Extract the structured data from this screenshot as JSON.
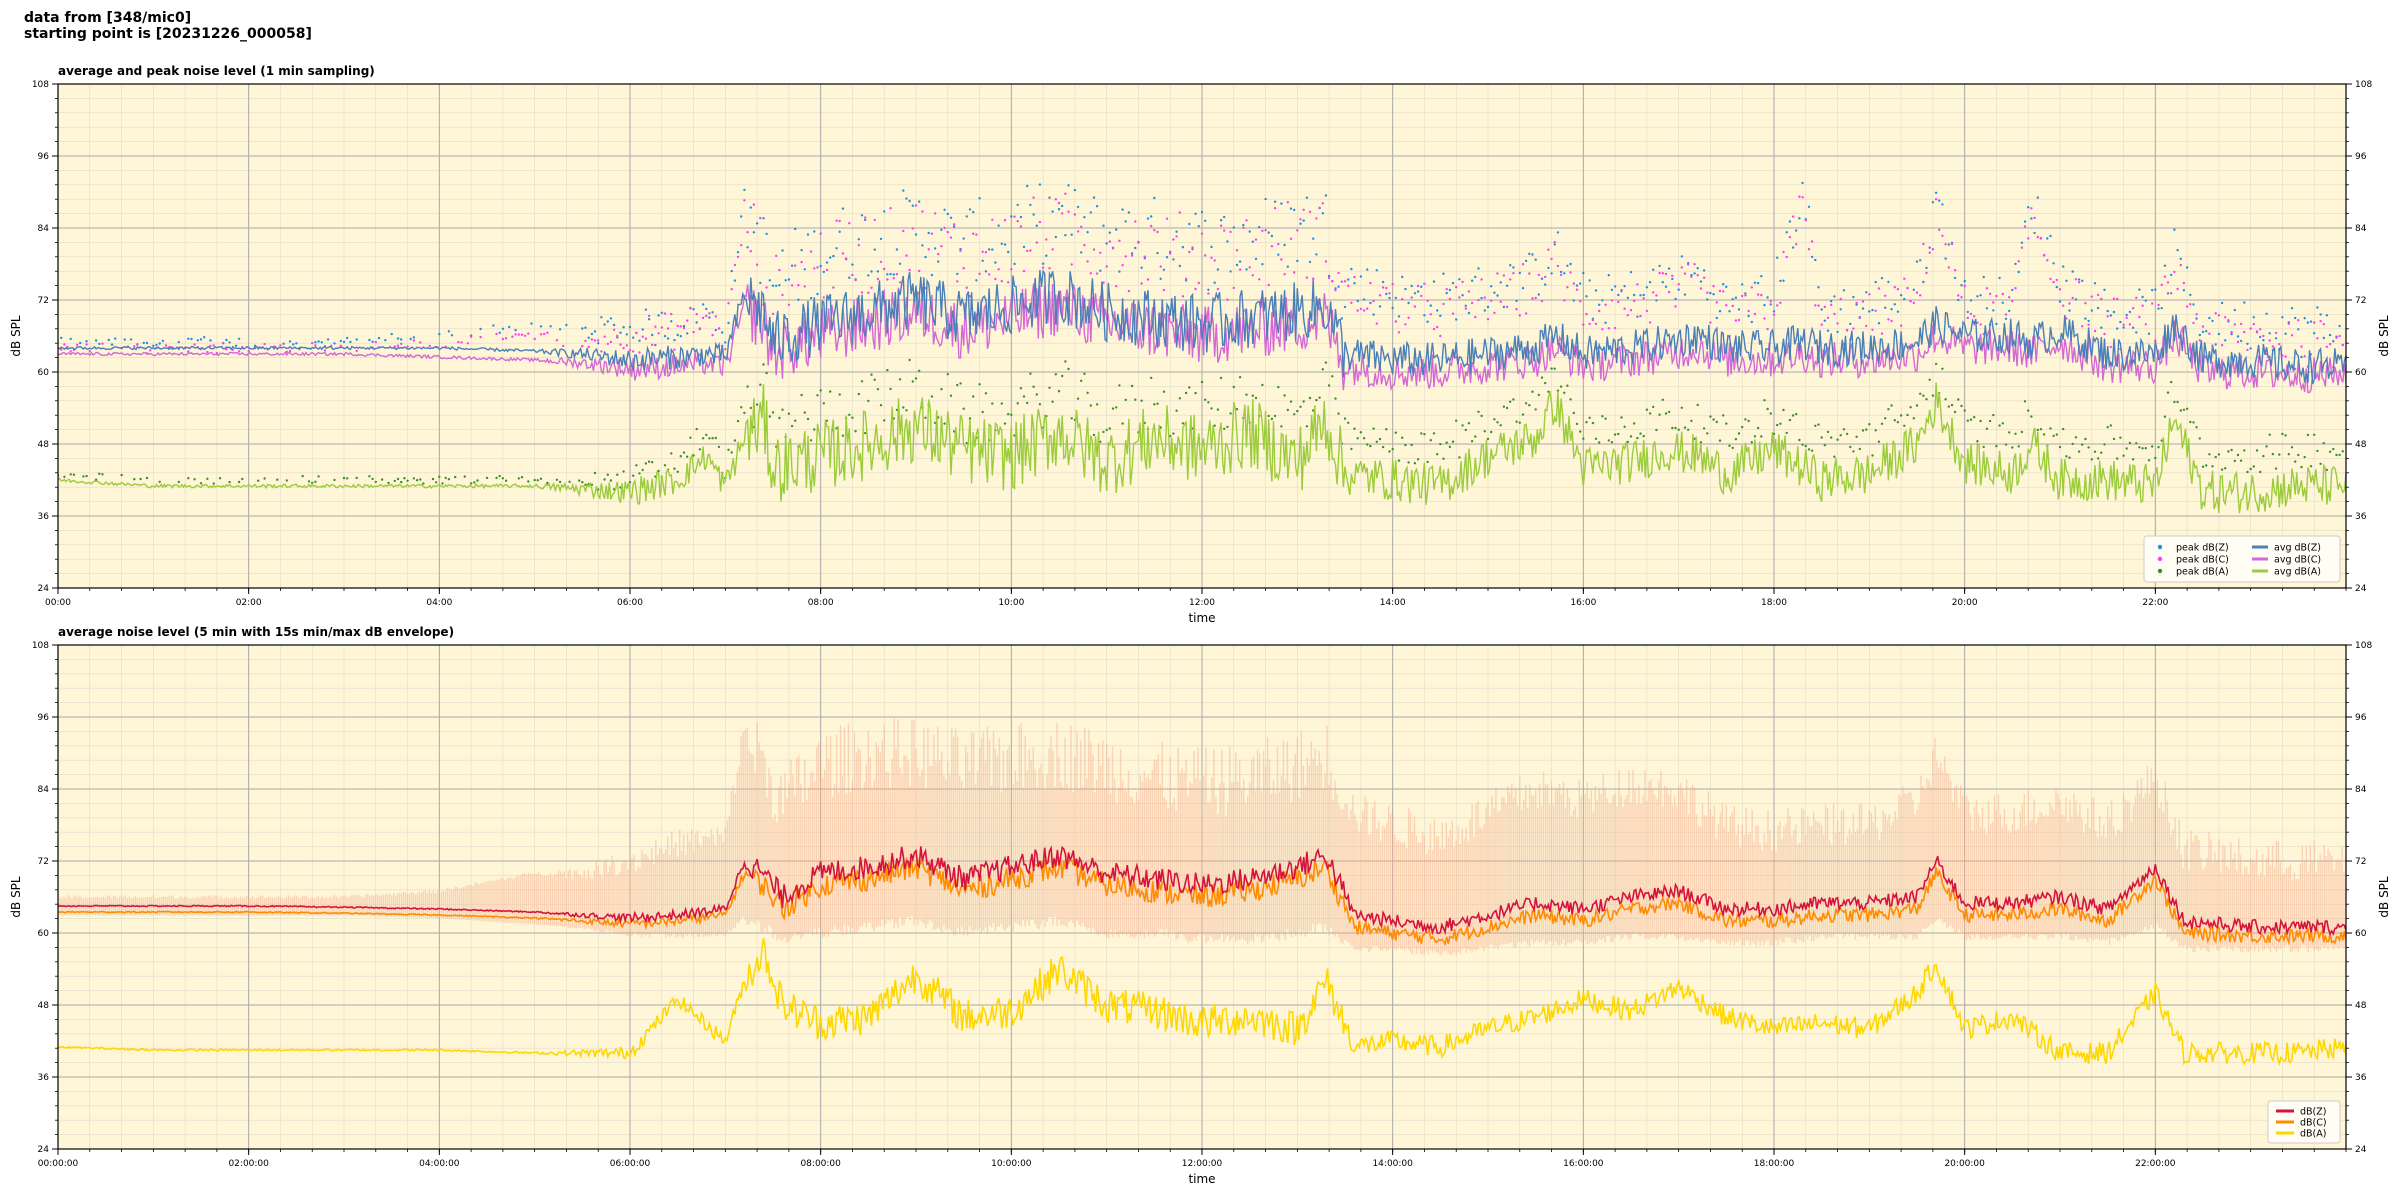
{
  "header": {
    "line1": "data from [348/mic0]",
    "line2": "starting point is [20231226_000058]"
  },
  "colors": {
    "background": "#fff6d8",
    "grid_major": "#a8a8a8",
    "grid_minor": "#e0dbc8",
    "peak_z": "#1f8fe0",
    "peak_c": "#ff3df0",
    "peak_a": "#3a8f2a",
    "avg_z": "#4a7fb8",
    "avg_c": "#d468d4",
    "avg_a": "#9ccc3c",
    "dbz": "#d4143c",
    "dbc": "#ff8c00",
    "dba": "#ffd700",
    "envelope": "#f4a88a"
  },
  "chart_data": [
    {
      "type": "line",
      "title": "average and peak noise level (1 min sampling)",
      "xlabel": "time",
      "ylabel": "dB SPL",
      "xlim": [
        0,
        24
      ],
      "ylim": [
        24,
        108
      ],
      "yticks": [
        "24",
        "36",
        "48",
        "60",
        "72",
        "84",
        "96",
        "108"
      ],
      "xticks": [
        "00:00",
        "02:00",
        "04:00",
        "06:00",
        "08:00",
        "10:00",
        "12:00",
        "14:00",
        "16:00",
        "18:00",
        "20:00",
        "22:00"
      ],
      "grid": true,
      "legend_position": "bottom-right",
      "legend": [
        "peak dB(Z)",
        "peak dB(C)",
        "peak dB(A)",
        "avg dB(Z)",
        "avg dB(C)",
        "avg dB(A)"
      ],
      "x_hours": [
        0,
        1,
        2,
        3,
        4,
        5,
        5.5,
        6,
        6.5,
        6.8,
        7,
        7.2,
        7.4,
        7.5,
        8,
        8.5,
        9,
        9.5,
        10,
        10.5,
        11,
        11.5,
        12,
        12.5,
        13,
        13.3,
        13.5,
        14,
        14.5,
        15,
        15.5,
        15.7,
        16,
        16.5,
        16.9,
        17.2,
        17.5,
        18,
        18.3,
        18.5,
        19,
        19.5,
        19.7,
        20,
        20.5,
        20.7,
        21,
        21.5,
        22,
        22.2,
        22.5,
        23,
        23.5,
        24
      ],
      "series": [
        {
          "name": "avg dB(Z)",
          "values": [
            64,
            64,
            64,
            64,
            64,
            63.5,
            63,
            62,
            62.5,
            63,
            62.5,
            73,
            70,
            65,
            68,
            70,
            72,
            69,
            71,
            73,
            70,
            69,
            68,
            69,
            70,
            71,
            63,
            62,
            62,
            63,
            64,
            66,
            63,
            64,
            65,
            66,
            64,
            64,
            65,
            64,
            64,
            65,
            68,
            66,
            66,
            65,
            67,
            63,
            63,
            68,
            62,
            62,
            61,
            61
          ]
        },
        {
          "name": "avg dB(C)",
          "values": [
            63,
            63,
            63,
            63,
            62.5,
            62,
            61.5,
            60.5,
            61,
            61.5,
            61,
            71,
            68,
            63,
            66,
            68,
            70,
            67,
            69,
            71,
            68,
            67,
            66,
            67,
            68,
            69,
            61,
            60,
            60,
            61,
            62,
            64,
            61,
            62,
            63,
            64,
            62,
            62,
            63,
            62,
            62,
            63,
            66,
            64,
            64,
            63,
            65,
            61,
            61,
            66,
            60,
            60,
            59.5,
            59.5
          ]
        },
        {
          "name": "avg dB(A)",
          "values": [
            42,
            41,
            41,
            41,
            41,
            41,
            40.5,
            40,
            42,
            46,
            41,
            49,
            52,
            44,
            46,
            48,
            51,
            47,
            46,
            50,
            45,
            49,
            47,
            50,
            45,
            52,
            43,
            42,
            41,
            46,
            49,
            55,
            44,
            45,
            47,
            46,
            43,
            47,
            44,
            42,
            43,
            48,
            55,
            45,
            43,
            48,
            42,
            42,
            41,
            52,
            40,
            40,
            41,
            41
          ]
        },
        {
          "name": "peak dB(Z)",
          "values": [
            65,
            65,
            65,
            65,
            66,
            68,
            67,
            67,
            68,
            70,
            67,
            88,
            80,
            74,
            80,
            82,
            84,
            81,
            83,
            85,
            83,
            82,
            81,
            82,
            84,
            84,
            75,
            73,
            72,
            74,
            76,
            80,
            72,
            73,
            75,
            76,
            71,
            73,
            90,
            70,
            71,
            74,
            89,
            72,
            72,
            88,
            76,
            70,
            70,
            79,
            68,
            68,
            67,
            67
          ]
        },
        {
          "name": "peak dB(C)",
          "values": [
            64,
            64,
            64,
            64,
            65,
            66,
            65,
            66,
            67,
            69,
            66,
            86,
            78,
            72,
            78,
            80,
            82,
            79,
            81,
            83,
            81,
            80,
            79,
            80,
            82,
            82,
            73,
            71,
            70,
            72,
            74,
            78,
            70,
            71,
            73,
            74,
            69,
            71,
            88,
            68,
            69,
            72,
            87,
            70,
            70,
            86,
            74,
            68,
            68,
            77,
            66,
            66,
            65,
            65
          ]
        },
        {
          "name": "peak dB(A)",
          "values": [
            43,
            42,
            42,
            42,
            42,
            42,
            42,
            42,
            45,
            50,
            44,
            54,
            57,
            50,
            53,
            55,
            57,
            53,
            53,
            57,
            52,
            55,
            53,
            56,
            52,
            58,
            49,
            48,
            47,
            52,
            55,
            60,
            50,
            51,
            53,
            52,
            49,
            53,
            50,
            48,
            49,
            54,
            60,
            51,
            49,
            54,
            48,
            48,
            47,
            57,
            46,
            46,
            47,
            47
          ]
        }
      ]
    },
    {
      "type": "line",
      "title": "average noise level (5 min with 15s min/max dB envelope)",
      "xlabel": "time",
      "ylabel": "dB SPL",
      "xlim": [
        0,
        24
      ],
      "ylim": [
        24,
        108
      ],
      "yticks": [
        "24",
        "36",
        "48",
        "60",
        "72",
        "84",
        "96",
        "108"
      ],
      "xticks": [
        "00:00:00",
        "02:00:00",
        "04:00:00",
        "06:00:00",
        "08:00:00",
        "10:00:00",
        "12:00:00",
        "14:00:00",
        "16:00:00",
        "18:00:00",
        "20:00:00",
        "22:00:00"
      ],
      "grid": true,
      "legend_position": "bottom-right",
      "legend": [
        "dB(Z)",
        "dB(C)",
        "dB(A)"
      ],
      "x_hours": [
        0,
        1,
        2,
        3,
        4,
        5,
        5.5,
        6,
        6.5,
        7,
        7.2,
        7.4,
        7.6,
        8,
        8.5,
        9,
        9.5,
        10,
        10.5,
        11,
        11.5,
        12,
        12.5,
        13,
        13.3,
        13.6,
        14,
        14.5,
        15,
        15.5,
        16,
        16.5,
        17,
        17.5,
        18,
        18.5,
        19,
        19.5,
        19.7,
        20,
        20.5,
        21,
        21.5,
        22,
        22.3,
        23,
        23.5,
        24
      ],
      "series": [
        {
          "name": "dB(Z)",
          "values": [
            64.5,
            64.5,
            64.5,
            64.3,
            64,
            63.5,
            63,
            62.5,
            63,
            64,
            72,
            70,
            66,
            70,
            71,
            73,
            69,
            71,
            73,
            70,
            69,
            68,
            69,
            71,
            73,
            63,
            62,
            61,
            63,
            65,
            64,
            66,
            67,
            64,
            64,
            65,
            65,
            66,
            72,
            65,
            65,
            66,
            64,
            71,
            62,
            61,
            61,
            61
          ]
        },
        {
          "name": "dB(C)",
          "values": [
            63.5,
            63.5,
            63.5,
            63.3,
            63,
            62.5,
            62,
            61.5,
            62,
            63,
            70,
            68,
            64,
            68,
            69,
            71,
            67,
            69,
            71,
            68,
            67,
            66,
            67,
            69,
            71,
            61,
            60,
            59,
            61,
            63,
            62,
            64,
            65,
            62,
            62,
            63,
            63,
            64,
            70,
            63,
            63,
            64,
            62,
            69,
            60,
            59.5,
            59.5,
            59.5
          ]
        },
        {
          "name": "dB(A)",
          "values": [
            41,
            40.5,
            40.5,
            40.5,
            40.5,
            40,
            40,
            40,
            49,
            42,
            52,
            57,
            48,
            45,
            46,
            53,
            46,
            47,
            54,
            48,
            47,
            45,
            46,
            44,
            52,
            41,
            42,
            41,
            44,
            46,
            49,
            47,
            51,
            46,
            44,
            45,
            44,
            50,
            55,
            44,
            46,
            40,
            40,
            50,
            40,
            40,
            40,
            41
          ]
        },
        {
          "name": "envelope max",
          "values": [
            66,
            66,
            66,
            66,
            67,
            70,
            70,
            72,
            75,
            76,
            94,
            88,
            82,
            88,
            90,
            90,
            88,
            89,
            90,
            88,
            86,
            85,
            86,
            88,
            90,
            80,
            78,
            76,
            80,
            84,
            82,
            85,
            84,
            78,
            77,
            78,
            78,
            82,
            90,
            80,
            80,
            82,
            78,
            86,
            74,
            72,
            72,
            72
          ]
        },
        {
          "name": "envelope min",
          "values": [
            63,
            63,
            63,
            63,
            62.5,
            61.5,
            61,
            60,
            60,
            60,
            63,
            62,
            60,
            61,
            62,
            63,
            61,
            62,
            63,
            61,
            61,
            60,
            60,
            61,
            62,
            58,
            58,
            57,
            58,
            59,
            59,
            60,
            60,
            59,
            59,
            60,
            60,
            60,
            63,
            60,
            60,
            60,
            59,
            62,
            58,
            58,
            58,
            58
          ]
        }
      ]
    }
  ]
}
